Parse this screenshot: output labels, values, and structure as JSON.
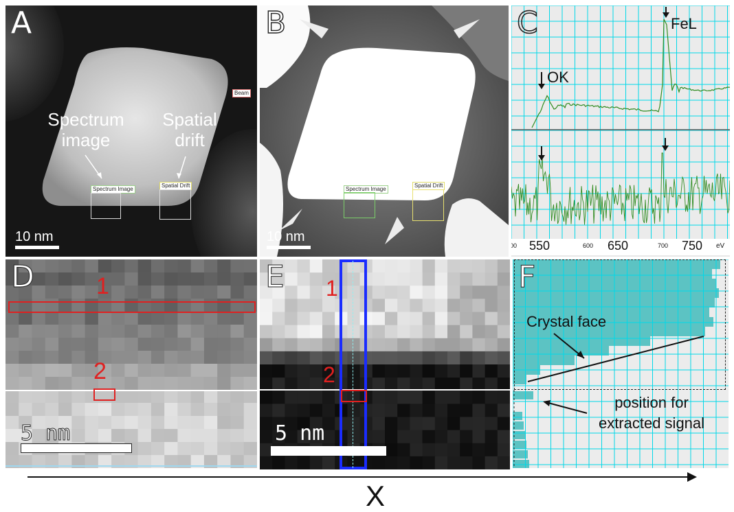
{
  "panels": {
    "a": {
      "letter": "A",
      "annotation_spectrum": [
        "Spectrum",
        "image"
      ],
      "annotation_drift": [
        "Spatial",
        "drift"
      ],
      "tag_spectrum": "Spectrum Image",
      "tag_drift": "Spatial Drift",
      "tag_beam": "Beam",
      "scale": "10 nm"
    },
    "b": {
      "letter": "B",
      "tag_spectrum": "Spectrum Image",
      "tag_drift": "Spatial Drift",
      "scale": "10 nm"
    },
    "c": {
      "letter": "C",
      "peak_ok": "OK",
      "peak_fel": "FeL",
      "x_ticks": [
        "00",
        "550",
        "600",
        "650",
        "700",
        "750"
      ],
      "x_unit": "eV"
    },
    "d": {
      "letter": "D",
      "marker_1": "1",
      "marker_2": "2",
      "scale": "5 nm"
    },
    "e": {
      "letter": "E",
      "marker_1": "1",
      "marker_2": "2",
      "scale": "5 nm"
    },
    "f": {
      "letter": "F",
      "label_crystal": "Crystal face",
      "label_position": [
        "position for",
        "extracted signal"
      ]
    }
  },
  "axis_label": "X",
  "colors": {
    "spectrum_line": "#2e8b1f",
    "grid": "#00d8e8",
    "fill_f": "#5cc3c3",
    "marker": "#e02020",
    "column": "#1a2cff"
  }
}
